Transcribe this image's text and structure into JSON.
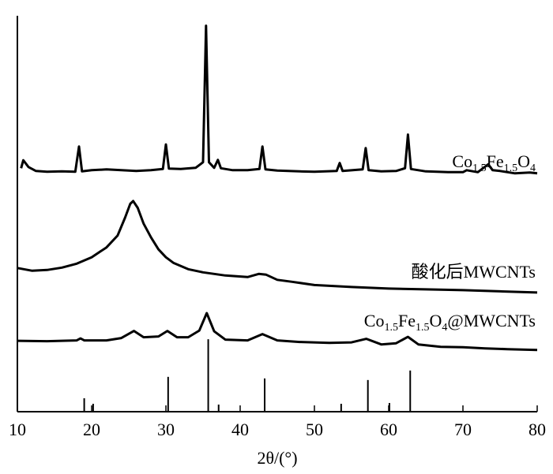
{
  "chart_data": {
    "type": "line",
    "xlabel": "2θ/(°)",
    "xlim": [
      10,
      80
    ],
    "xticks": [
      10,
      20,
      30,
      40,
      50,
      60,
      70,
      80
    ],
    "ylim": [
      0,
      100
    ],
    "series": [
      {
        "name": "Co1.5Fe1.5O4",
        "color": "#000000",
        "x": [
          10.5,
          10.8,
          11.5,
          12.5,
          14,
          16,
          17.8,
          18.3,
          18.7,
          20,
          22,
          24,
          26,
          28,
          29.6,
          30,
          30.4,
          32,
          34,
          35,
          35.4,
          35.8,
          36.5,
          37,
          37.4,
          39,
          41,
          42.6,
          43,
          43.4,
          45,
          48,
          50,
          53,
          53.4,
          53.8,
          56.5,
          56.9,
          57.3,
          59,
          61,
          62.2,
          62.6,
          63,
          65,
          68,
          70,
          70.5,
          72,
          73.4,
          74,
          75,
          77,
          79,
          80
        ],
        "values": [
          61.5,
          63.5,
          61.8,
          60.8,
          60.6,
          60.7,
          60.6,
          67,
          60.7,
          61,
          61.2,
          61,
          60.8,
          61,
          61.3,
          67.5,
          61.4,
          61.3,
          61.6,
          63,
          97.5,
          63,
          61.6,
          63.6,
          61.5,
          61,
          61,
          61.3,
          67,
          61.2,
          60.9,
          60.7,
          60.6,
          60.8,
          62.8,
          60.8,
          61.2,
          66.6,
          61,
          60.7,
          60.8,
          61.5,
          70,
          61.3,
          60.7,
          60.5,
          60.5,
          61,
          60.5,
          62.5,
          61,
          60.8,
          60.2,
          60.4,
          60.2
        ]
      },
      {
        "name": "酸化后MWCNTs",
        "color": "#000000",
        "x": [
          10,
          12,
          14,
          16,
          18,
          20,
          22,
          23.5,
          24.5,
          25.2,
          25.6,
          26.2,
          27,
          28,
          29,
          30,
          31,
          33,
          35,
          38,
          41,
          42.5,
          43.5,
          45,
          47,
          50,
          55,
          60,
          65,
          70,
          75,
          80
        ],
        "values": [
          36.3,
          35.6,
          35.8,
          36.4,
          37.4,
          39,
          41.5,
          44.5,
          49,
          52.5,
          53.2,
          51.5,
          47.5,
          44,
          41,
          39,
          37.6,
          36,
          35.2,
          34.4,
          34,
          34.8,
          34.6,
          33.3,
          32.8,
          32,
          31.5,
          31.1,
          30.9,
          30.7,
          30.4,
          30.1
        ]
      },
      {
        "name": "Co1.5Fe1.5O4@MWCNTs",
        "color": "#000000",
        "x": [
          10,
          14,
          18,
          18.5,
          19,
          22,
          24,
          25.7,
          27,
          29,
          30.2,
          31.5,
          33,
          34.5,
          35.5,
          36.5,
          38,
          41,
          43,
          45,
          48,
          52,
          55,
          57,
          59,
          61,
          62.6,
          64,
          67,
          70,
          73,
          76,
          80
        ],
        "values": [
          17.9,
          17.8,
          18,
          18.5,
          18,
          18,
          18.6,
          20.4,
          18.8,
          19,
          20.4,
          18.8,
          18.8,
          20.5,
          24.9,
          20.3,
          18.2,
          18,
          19.6,
          18,
          17.6,
          17.4,
          17.5,
          18.4,
          17,
          17.3,
          18.9,
          17,
          16.4,
          16.3,
          16,
          15.8,
          15.6
        ]
      }
    ],
    "reference": {
      "color": "#000000",
      "x": [
        19.0,
        20.2,
        30.3,
        35.7,
        37.1,
        43.3,
        53.6,
        57.2,
        60.1,
        62.9
      ],
      "values": [
        3.4,
        2,
        8.8,
        18.3,
        1.8,
        8.4,
        2,
        8,
        2.2,
        10.4
      ]
    }
  }
}
